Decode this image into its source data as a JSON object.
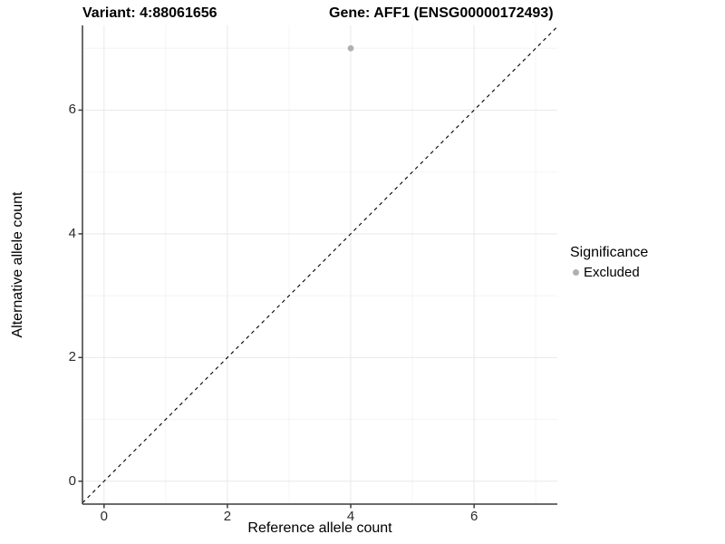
{
  "title": {
    "variant": "Variant: 4:88061656",
    "gene": "Gene: AFF1 (ENSG00000172493)"
  },
  "axes": {
    "x_title": "Reference allele count",
    "y_title": "Alternative allele count"
  },
  "legend": {
    "title": "Significance",
    "items": [
      {
        "label": "Excluded",
        "marker": "dot-icon",
        "color": "#b0b0b0"
      }
    ]
  },
  "chart_data": {
    "type": "scatter",
    "title": "Variant: 4:88061656    Gene: AFF1 (ENSG00000172493)",
    "xlabel": "Reference allele count",
    "ylabel": "Alternative allele count",
    "xlim": [
      -0.35,
      7.35
    ],
    "ylim": [
      -0.37,
      7.37
    ],
    "x_ticks": [
      "0",
      "2",
      "4",
      "6"
    ],
    "x_tick_values": [
      0,
      2,
      4,
      6
    ],
    "x_minor_ticks": [
      1,
      3,
      5,
      7
    ],
    "y_ticks": [
      "0",
      "2",
      "4",
      "6"
    ],
    "y_tick_values": [
      0,
      2,
      4,
      6
    ],
    "y_minor_ticks": [
      1,
      3,
      5,
      7
    ],
    "grid": true,
    "legend_position": "right",
    "series": [
      {
        "name": "Excluded",
        "color": "#b0b0b0",
        "points": [
          {
            "x": 4,
            "y": 7
          }
        ]
      }
    ],
    "reference_line": {
      "kind": "identity",
      "equation": "y = x",
      "style": "dashed",
      "color": "#000000"
    }
  },
  "colors": {
    "background": "#ffffff",
    "grid_major": "#e9e9e9",
    "grid_minor": "#f4f4f4",
    "axis_line": "#3c3c3c",
    "tick_label": "#2b2b2b",
    "point": "#b0b0b0"
  }
}
